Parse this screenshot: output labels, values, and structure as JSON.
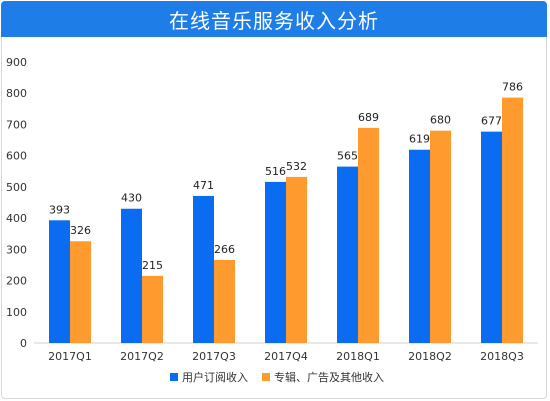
{
  "title": "在线音乐服务收入分析",
  "colors": {
    "header": "#1e7de7",
    "series1": "#0a6cf0",
    "series2": "#ff9a2e"
  },
  "chart_data": {
    "type": "bar",
    "title": "在线音乐服务收入分析",
    "categories": [
      "2017Q1",
      "2017Q2",
      "2017Q3",
      "2017Q4",
      "2018Q1",
      "2018Q2",
      "2018Q3"
    ],
    "series": [
      {
        "name": "用户订阅收入",
        "values": [
          393,
          430,
          471,
          516,
          565,
          619,
          677
        ]
      },
      {
        "name": "专辑、广告及其他收入",
        "values": [
          326,
          215,
          266,
          532,
          689,
          680,
          786
        ]
      }
    ],
    "yticks": [
      0,
      100,
      200,
      300,
      400,
      500,
      600,
      700,
      800,
      900
    ],
    "ylim": [
      0,
      900
    ],
    "legend_position": "bottom",
    "grid": false
  }
}
